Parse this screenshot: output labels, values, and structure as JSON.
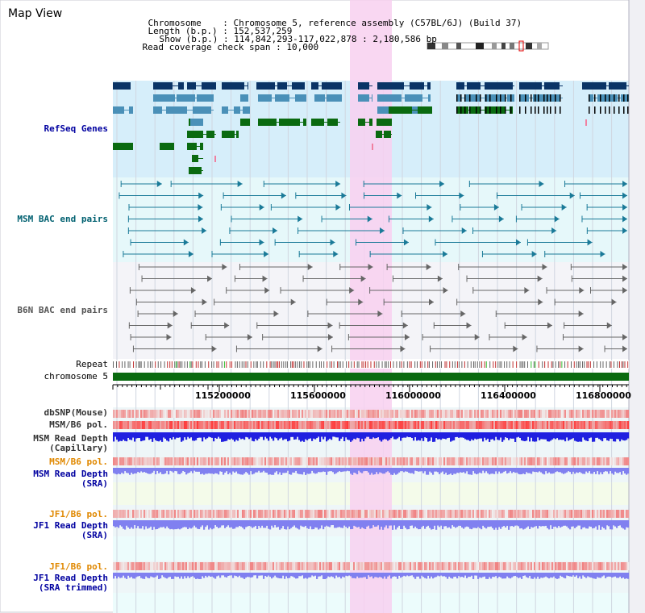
{
  "header": {
    "title": "Map View",
    "chromosome_label": "Chromosome",
    "chromosome_value": "Chromosome 5, reference assembly (C57BL/6J) (Build 37)",
    "length_label": "Length (b.p.)",
    "length_value": "152,537,259",
    "show_label": "Show (b.p.)",
    "show_value": "114,842,293-117,022,878 : 2,180,586 bp",
    "span_label": "Read coverage check span",
    "span_value": "10,000"
  },
  "tracks": {
    "refseq": "RefSeq Genes",
    "msm_bac": "MSM BAC end pairs",
    "b6n_bac": "B6N BAC end pairs",
    "repeat": "Repeat",
    "chromosome": "chromosome 5",
    "dbsnp": "dbSNP(Mouse)",
    "msm_b6_pol": "MSM/B6 pol.",
    "msm_depth_cap_1": "MSM Read Depth",
    "msm_depth_cap_2": "(Capillary)",
    "msm_b6_pol_2": "MSM/B6 pol.",
    "msm_depth_sra_1": "MSM Read Depth",
    "msm_depth_sra_2": "(SRA)",
    "jf1_b6_pol": "JF1/B6 pol.",
    "jf1_depth_sra_1": "JF1 Read Depth",
    "jf1_depth_sra_2": "(SRA)",
    "jf1_b6_pol_2": "JF1/B6 pol.",
    "jf1_depth_trim_1": "JF1 Read Depth",
    "jf1_depth_trim_2": "(SRA trimmed)"
  },
  "axis": {
    "ticks": [
      "115200000",
      "115600000",
      "116000000",
      "116400000",
      "116800000"
    ]
  },
  "colors": {
    "refseq_bg": "#d6eefa",
    "bac_bg": "#e6f8fa",
    "b6n_bg": "#f4f4f8",
    "highlight": "#f8d0f0",
    "gene_dark": "#0a3466",
    "gene_mid": "#4a90b8",
    "gene_green": "#0a6a10",
    "msm_bac_line": "#1a7a98",
    "b6n_line": "#666666",
    "chromosome": "#0a6a10",
    "depth_blue": "#2020e0",
    "depth_sra": "#8080f0",
    "pol_red": "#e03030"
  }
}
